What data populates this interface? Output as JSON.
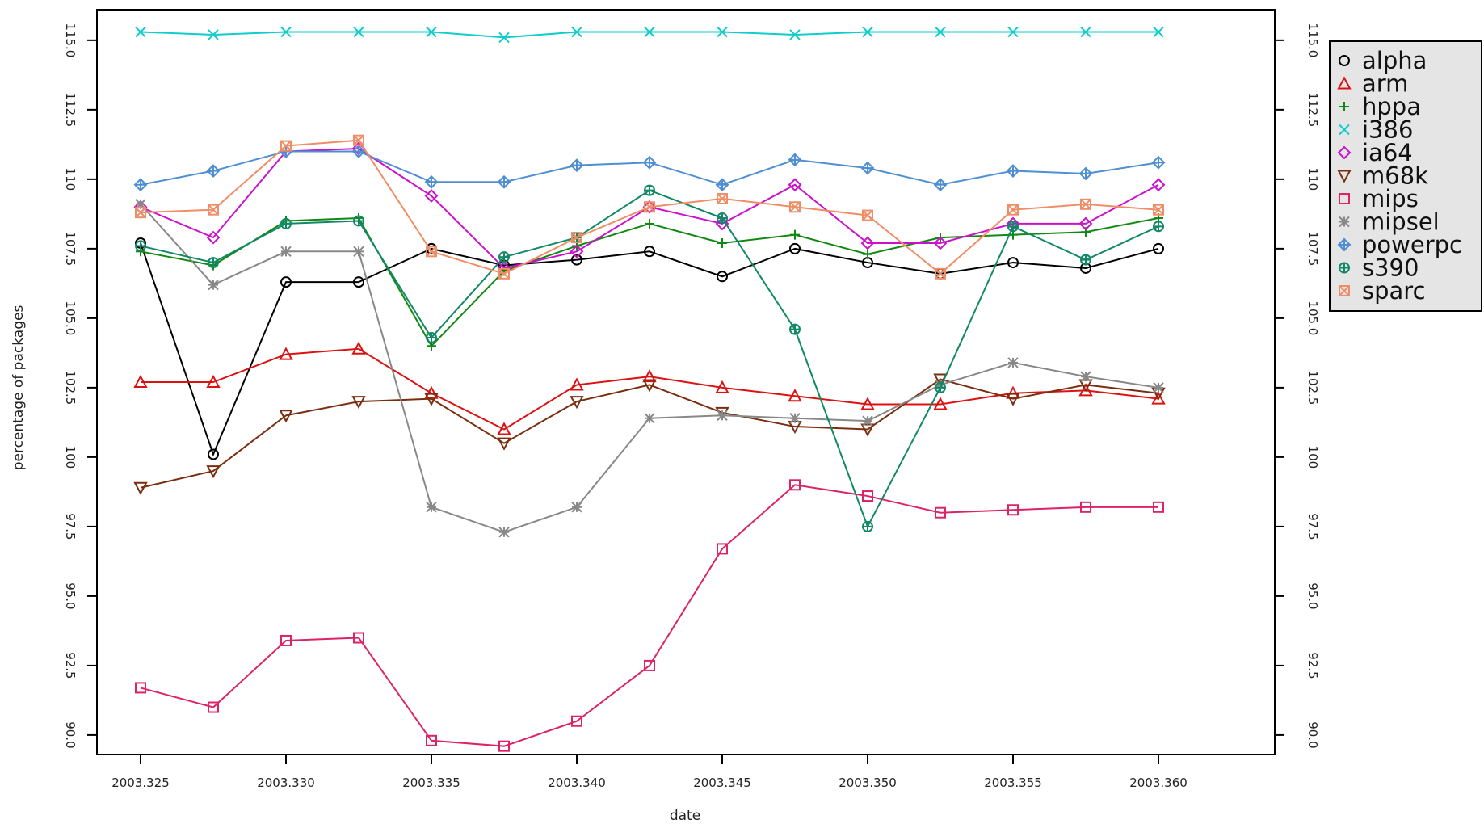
{
  "chart_data": {
    "type": "line",
    "title": "",
    "xlabel": "date",
    "ylabel": "percentage of packages",
    "x_ticks": [
      "2003.325",
      "2003.330",
      "2003.335",
      "2003.340",
      "2003.345",
      "2003.350",
      "2003.355",
      "2003.360"
    ],
    "y_ticks": [
      "90.0",
      "92.5",
      "95.0",
      "97.5",
      "100",
      "102.5",
      "105.0",
      "107.5",
      "110",
      "112.5",
      "115.0"
    ],
    "ylim": [
      89.3,
      116.1
    ],
    "right_axis": true,
    "grid": false,
    "legend_position": "top-right",
    "x": [
      2003.325,
      2003.3275,
      2003.33,
      2003.3325,
      2003.335,
      2003.3375,
      2003.34,
      2003.3425,
      2003.345,
      2003.3475,
      2003.35,
      2003.3525,
      2003.355,
      2003.3575,
      2003.36,
      2003.3625
    ],
    "series": [
      {
        "name": "alpha",
        "color": "#000000",
        "marker": "circle",
        "values": [
          107.7,
          100.1,
          106.3,
          106.3,
          107.5,
          106.9,
          107.1,
          107.4,
          106.5,
          107.5,
          107.0,
          106.6,
          107.0,
          106.8,
          107.5,
          null
        ]
      },
      {
        "name": "arm",
        "color": "#dd1111",
        "marker": "triangle-up",
        "values": [
          102.7,
          102.7,
          103.7,
          103.9,
          102.3,
          101.0,
          102.6,
          102.9,
          102.5,
          102.2,
          101.9,
          101.9,
          102.3,
          102.4,
          102.1,
          null
        ]
      },
      {
        "name": "hppa",
        "color": "#118811",
        "marker": "plus",
        "values": [
          107.4,
          106.9,
          108.5,
          108.6,
          104.0,
          106.7,
          107.6,
          108.4,
          107.7,
          108.0,
          107.3,
          107.9,
          108.0,
          108.1,
          108.6,
          null
        ]
      },
      {
        "name": "i386",
        "color": "#11cccc",
        "marker": "cross",
        "values": [
          115.3,
          115.2,
          115.3,
          115.3,
          115.3,
          115.1,
          115.3,
          115.3,
          115.3,
          115.2,
          115.3,
          115.3,
          115.3,
          115.3,
          115.3,
          null
        ]
      },
      {
        "name": "ia64",
        "color": "#cc11cc",
        "marker": "diamond",
        "values": [
          109.0,
          107.9,
          111.0,
          111.1,
          109.4,
          106.8,
          107.4,
          109.0,
          108.4,
          109.8,
          107.7,
          107.7,
          108.4,
          108.4,
          109.8,
          null
        ]
      },
      {
        "name": "m68k",
        "color": "#7a2e10",
        "marker": "triangle-down",
        "values": [
          98.9,
          99.5,
          101.5,
          102.0,
          102.1,
          100.5,
          102.0,
          102.6,
          101.6,
          101.1,
          101.0,
          102.8,
          102.1,
          102.6,
          102.3,
          null
        ]
      },
      {
        "name": "mips",
        "color": "#dd2266",
        "marker": "square",
        "values": [
          91.7,
          91.0,
          93.4,
          93.5,
          89.8,
          89.6,
          90.5,
          92.5,
          96.7,
          99.0,
          98.6,
          98.0,
          98.1,
          98.2,
          98.2,
          null
        ]
      },
      {
        "name": "mipsel",
        "color": "#888888",
        "marker": "asterisk",
        "values": [
          109.1,
          106.2,
          107.4,
          107.4,
          98.2,
          97.3,
          98.2,
          101.4,
          101.5,
          101.4,
          101.3,
          102.6,
          103.4,
          102.9,
          102.5,
          null
        ]
      },
      {
        "name": "powerpc",
        "color": "#4f8fd1",
        "marker": "diamond-plus",
        "values": [
          109.8,
          110.3,
          111.0,
          111.0,
          109.9,
          109.9,
          110.5,
          110.6,
          109.8,
          110.7,
          110.4,
          109.8,
          110.3,
          110.2,
          110.6,
          null
        ]
      },
      {
        "name": "s390",
        "color": "#118866",
        "marker": "circle-plus",
        "values": [
          107.6,
          107.0,
          108.4,
          108.5,
          104.3,
          107.2,
          107.9,
          109.6,
          108.6,
          104.6,
          97.5,
          102.5,
          108.3,
          107.1,
          108.3,
          null
        ]
      },
      {
        "name": "sparc",
        "color": "#f08d66",
        "marker": "square-x",
        "values": [
          108.8,
          108.9,
          111.2,
          111.4,
          107.4,
          106.6,
          107.9,
          109.0,
          109.3,
          109.0,
          108.7,
          106.6,
          108.9,
          109.1,
          108.9,
          null
        ]
      }
    ]
  }
}
